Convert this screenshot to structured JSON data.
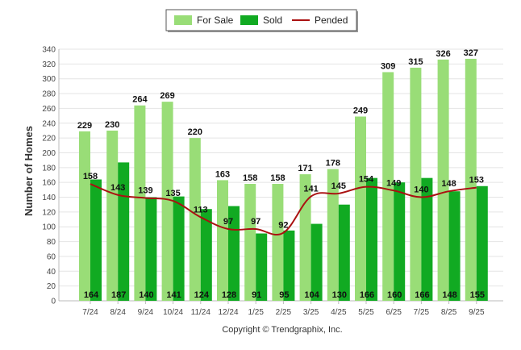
{
  "chart_data": {
    "type": "bar",
    "ylabel": "Number of Homes",
    "xlabel": "",
    "ylim": [
      0,
      340
    ],
    "yticks": [
      0,
      20,
      40,
      60,
      80,
      100,
      120,
      140,
      160,
      180,
      200,
      220,
      240,
      260,
      280,
      300,
      320,
      340
    ],
    "grid": true,
    "legend_placement": "top-center",
    "categories": [
      "7/24",
      "8/24",
      "9/24",
      "10/24",
      "11/24",
      "12/24",
      "1/25",
      "2/25",
      "3/25",
      "4/25",
      "5/25",
      "6/25",
      "7/25",
      "8/25",
      "9/25"
    ],
    "series": [
      {
        "name": "For Sale",
        "kind": "bar",
        "color": "#99dd77",
        "values": [
          229,
          230,
          264,
          269,
          220,
          163,
          158,
          158,
          171,
          178,
          249,
          309,
          315,
          326,
          327
        ]
      },
      {
        "name": "Sold",
        "kind": "bar",
        "color": "#11aa22",
        "values": [
          164,
          187,
          140,
          141,
          124,
          128,
          91,
          95,
          104,
          130,
          166,
          160,
          166,
          148,
          155
        ]
      },
      {
        "name": "Pended",
        "kind": "line",
        "color": "#aa1111",
        "values": [
          158,
          143,
          139,
          135,
          113,
          97,
          97,
          92,
          141,
          145,
          154,
          149,
          140,
          148,
          153
        ]
      }
    ]
  },
  "footer": {
    "copyright": "Copyright © Trendgraphix, Inc."
  }
}
